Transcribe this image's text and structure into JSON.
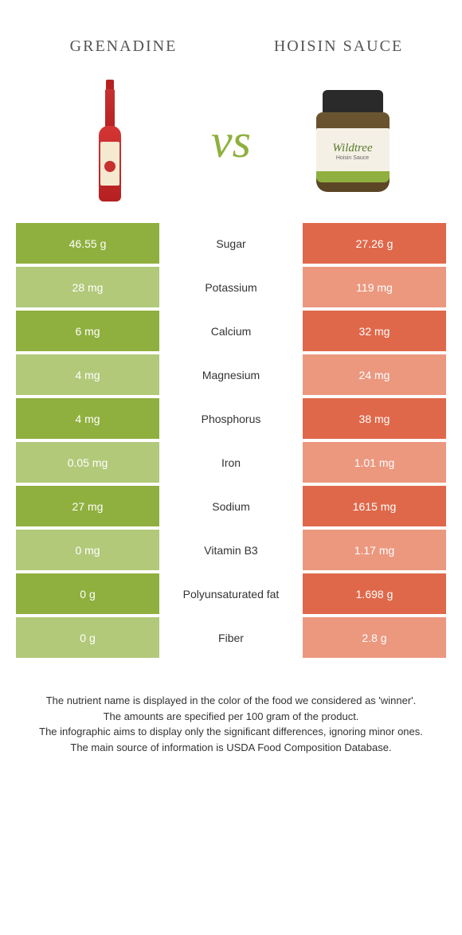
{
  "left_product": "Grenadine",
  "right_product": "Hoisin sauce",
  "vs_text": "vs",
  "jar_brand": "Wildtree",
  "jar_sub": "Hoisin Sauce",
  "colors": {
    "green": "#8fb03e",
    "green_light": "#b2c97a",
    "orange": "#e0684a",
    "orange_light": "#eb987f"
  },
  "rows": [
    {
      "nutrient": "Sugar",
      "left": "46.55 g",
      "right": "27.26 g",
      "winner": "left"
    },
    {
      "nutrient": "Potassium",
      "left": "28 mg",
      "right": "119 mg",
      "winner": "right"
    },
    {
      "nutrient": "Calcium",
      "left": "6 mg",
      "right": "32 mg",
      "winner": "right"
    },
    {
      "nutrient": "Magnesium",
      "left": "4 mg",
      "right": "24 mg",
      "winner": "right"
    },
    {
      "nutrient": "Phosphorus",
      "left": "4 mg",
      "right": "38 mg",
      "winner": "right"
    },
    {
      "nutrient": "Iron",
      "left": "0.05 mg",
      "right": "1.01 mg",
      "winner": "right"
    },
    {
      "nutrient": "Sodium",
      "left": "27 mg",
      "right": "1615 mg",
      "winner": "right"
    },
    {
      "nutrient": "Vitamin B3",
      "left": "0 mg",
      "right": "1.17 mg",
      "winner": "right"
    },
    {
      "nutrient": "Polyunsaturated fat",
      "left": "0 g",
      "right": "1.698 g",
      "winner": "right"
    },
    {
      "nutrient": "Fiber",
      "left": "0 g",
      "right": "2.8 g",
      "winner": "right"
    }
  ],
  "footnotes": [
    "The nutrient name is displayed in the color of the food we considered as 'winner'.",
    "The amounts are specified per 100 gram of the product.",
    "The infographic aims to display only the significant differences, ignoring minor ones.",
    "The main source of information is USDA Food Composition Database."
  ]
}
